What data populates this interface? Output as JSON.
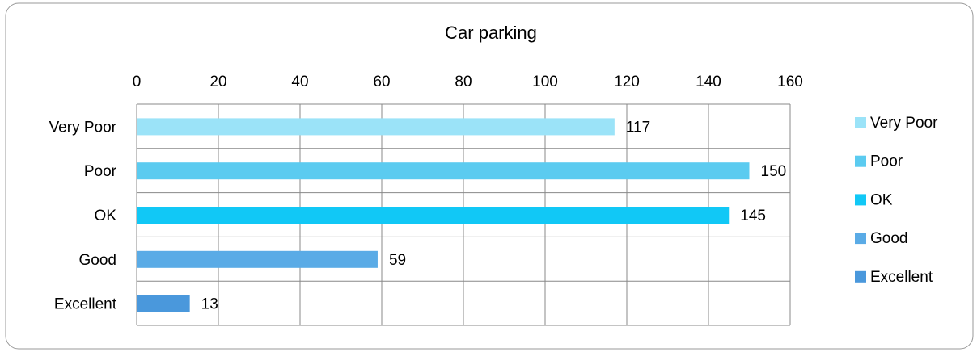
{
  "chart_data": {
    "type": "bar",
    "orientation": "horizontal",
    "title": "Car parking",
    "categories": [
      "Very Poor",
      "Poor",
      "OK",
      "Good",
      "Excellent"
    ],
    "values": [
      117,
      150,
      145,
      59,
      13
    ],
    "colors": [
      "#9be3f8",
      "#5bcbf0",
      "#11c8f6",
      "#5aabe6",
      "#4a98dc"
    ],
    "xlim": [
      0,
      160
    ],
    "xticks": [
      0,
      20,
      40,
      60,
      80,
      100,
      120,
      140,
      160
    ],
    "grid": true,
    "legend": "right"
  }
}
